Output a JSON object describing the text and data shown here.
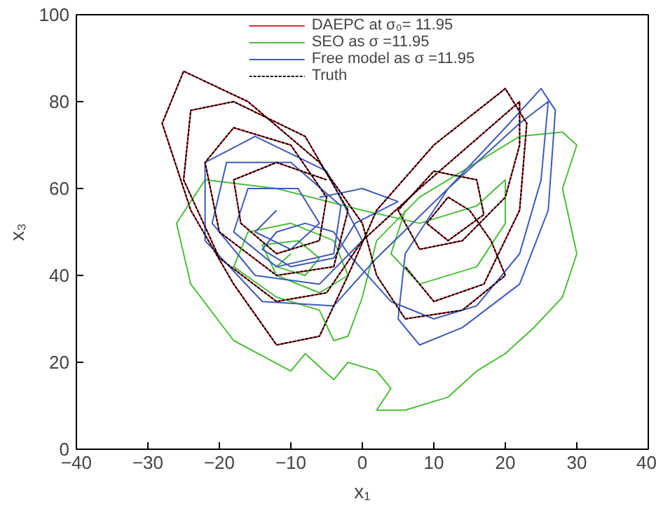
{
  "chart_data": {
    "type": "line",
    "xlabel": "x₁",
    "ylabel": "x₃",
    "xlim": [
      -40,
      40
    ],
    "ylim": [
      0,
      100
    ],
    "xticks": [
      -40,
      -30,
      -20,
      -10,
      0,
      10,
      20,
      30,
      40
    ],
    "yticks": [
      0,
      20,
      40,
      60,
      80,
      100
    ],
    "grid": false,
    "legend": "top",
    "line_style": "solid",
    "series": [
      {
        "name": "DAEPC at σ₀= 11.95",
        "color": "#e8222a",
        "x": [
          -5,
          -12,
          -18,
          -17,
          -12,
          -6,
          -5,
          -10,
          -18,
          -22,
          -20,
          -12,
          -4,
          -2,
          -8,
          -18,
          -24,
          -25,
          -20,
          -12,
          -5,
          0,
          8,
          15,
          22,
          22,
          20,
          14,
          8,
          5,
          10,
          16,
          17,
          12,
          9,
          12,
          15,
          18,
          20,
          14,
          6,
          2,
          0,
          -6,
          -16,
          -25,
          -28,
          -24,
          -18,
          -12,
          -6,
          -2,
          2,
          10,
          20,
          23,
          22,
          17,
          10,
          6
        ],
        "values": [
          62,
          66,
          62,
          52,
          45,
          48,
          58,
          70,
          74,
          66,
          50,
          40,
          42,
          55,
          72,
          80,
          78,
          62,
          44,
          34,
          36,
          48,
          60,
          70,
          80,
          70,
          58,
          48,
          46,
          55,
          64,
          62,
          54,
          48,
          52,
          58,
          55,
          48,
          40,
          32,
          30,
          40,
          52,
          66,
          80,
          87,
          75,
          55,
          38,
          24,
          26,
          40,
          55,
          70,
          83,
          75,
          55,
          38,
          34,
          42
        ]
      },
      {
        "name": "SEO as σ =11.95",
        "color": "#4cbf3a",
        "x": [
          -10,
          -12,
          -8,
          -6,
          -9,
          -14,
          -12,
          -6,
          -2,
          -4,
          -10,
          -16,
          -18,
          -12,
          -6,
          -4,
          -2,
          0,
          2,
          8,
          16,
          22,
          28,
          30,
          28,
          30,
          28,
          24,
          20,
          16,
          12,
          6,
          2,
          4,
          2,
          -2,
          -4,
          -8,
          -10,
          -18,
          -24,
          -26,
          -22,
          -12,
          0,
          8,
          16,
          20,
          20,
          16,
          8,
          4,
          6
        ],
        "values": [
          45,
          42,
          40,
          44,
          48,
          47,
          40,
          36,
          40,
          48,
          52,
          50,
          42,
          35,
          32,
          25,
          26,
          35,
          48,
          58,
          66,
          72,
          73,
          70,
          60,
          45,
          35,
          28,
          22,
          18,
          12,
          9,
          9,
          14,
          18,
          20,
          16,
          22,
          18,
          25,
          38,
          52,
          62,
          60,
          55,
          52,
          56,
          62,
          52,
          42,
          38,
          45,
          55
        ]
      },
      {
        "name": "Free model as σ =11.95",
        "color": "#3f5bb8",
        "x": [
          -12,
          -15,
          -10,
          -6,
          -9,
          -16,
          -18,
          -12,
          -4,
          -3,
          -10,
          -19,
          -21,
          -15,
          -6,
          0,
          -5,
          -15,
          -22,
          -22,
          -14,
          -4,
          2,
          12,
          20,
          25,
          27,
          26,
          22,
          14,
          8,
          5,
          6,
          12,
          22,
          26,
          25,
          22,
          16,
          10,
          4,
          -2,
          -4,
          -8,
          -12,
          -14,
          -10,
          -4,
          -1,
          5,
          0,
          -6
        ],
        "values": [
          55,
          50,
          46,
          52,
          60,
          60,
          50,
          42,
          45,
          56,
          66,
          66,
          52,
          40,
          38,
          48,
          64,
          72,
          66,
          48,
          34,
          33,
          44,
          60,
          74,
          83,
          78,
          55,
          38,
          28,
          24,
          30,
          45,
          60,
          75,
          80,
          62,
          45,
          33,
          30,
          34,
          45,
          50,
          52,
          50,
          46,
          42,
          44,
          52,
          57,
          60,
          58
        ]
      },
      {
        "name": "Truth",
        "color": "#000000",
        "line_style": "dotted",
        "x": [
          -5,
          -12,
          -18,
          -17,
          -12,
          -6,
          -5,
          -10,
          -18,
          -22,
          -20,
          -12,
          -4,
          -2,
          -8,
          -18,
          -24,
          -25,
          -20,
          -12,
          -5,
          0,
          8,
          15,
          22,
          22,
          20,
          14,
          8,
          5,
          10,
          16,
          17,
          12,
          9,
          12,
          15,
          18,
          20,
          14,
          6,
          2,
          0,
          -6,
          -16,
          -25,
          -28,
          -24,
          -18,
          -12,
          -6,
          -2,
          2,
          10,
          20,
          23,
          22,
          17,
          10,
          6
        ],
        "values": [
          62,
          66,
          62,
          52,
          45,
          48,
          58,
          70,
          74,
          66,
          50,
          40,
          42,
          55,
          72,
          80,
          78,
          62,
          44,
          34,
          36,
          48,
          60,
          70,
          80,
          70,
          58,
          48,
          46,
          55,
          64,
          62,
          54,
          48,
          52,
          58,
          55,
          48,
          40,
          32,
          30,
          40,
          52,
          66,
          80,
          87,
          75,
          55,
          38,
          24,
          26,
          40,
          55,
          70,
          83,
          75,
          55,
          38,
          34,
          42
        ]
      }
    ]
  }
}
